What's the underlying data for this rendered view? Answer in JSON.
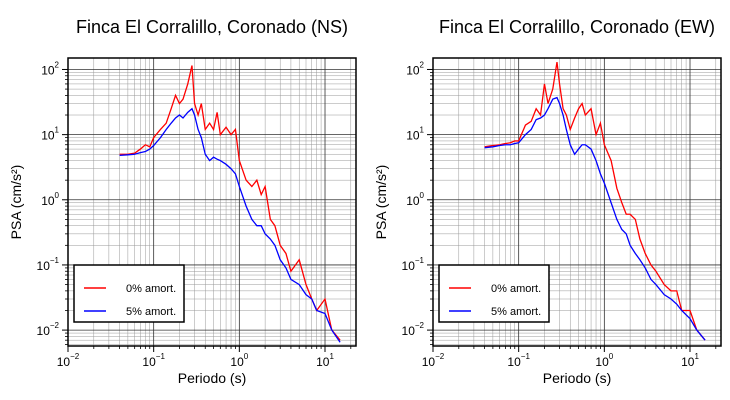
{
  "chart_data": [
    {
      "type": "line",
      "title": "Finca El Corralillo, Coronado (NS)",
      "x_label": "Periodo (s)",
      "y_label": "PSA (cm/s²)",
      "log_x": true,
      "log_y": true,
      "grid": true,
      "minor_grid": true,
      "legend": "lower left",
      "x": [
        0.04,
        0.05,
        0.06,
        0.07,
        0.08,
        0.09,
        0.1,
        0.12,
        0.14,
        0.16,
        0.18,
        0.2,
        0.22,
        0.25,
        0.28,
        0.3,
        0.33,
        0.36,
        0.4,
        0.45,
        0.5,
        0.55,
        0.6,
        0.7,
        0.8,
        0.9,
        1.0,
        1.2,
        1.4,
        1.6,
        1.8,
        2,
        2.3,
        2.6,
        3,
        3.5,
        4,
        5,
        6,
        7,
        8,
        10,
        12,
        15
      ],
      "series": [
        {
          "name": "0% amort.",
          "color": "#ff0000",
          "values": [
            5,
            5,
            5.2,
            6,
            7,
            6.5,
            9,
            12,
            15,
            25,
            40,
            30,
            35,
            60,
            115,
            30,
            20,
            30,
            12,
            15,
            12,
            22,
            10,
            13,
            10,
            12,
            4,
            2,
            1.6,
            2,
            1.2,
            1.6,
            0.5,
            0.4,
            0.2,
            0.15,
            0.08,
            0.12,
            0.05,
            0.03,
            0.02,
            0.03,
            0.01,
            0.007
          ]
        },
        {
          "name": "5% amort.",
          "color": "#0000ff",
          "values": [
            4.8,
            4.9,
            5,
            5.3,
            5.5,
            6,
            6.8,
            9,
            12,
            15,
            18,
            20,
            18,
            22,
            25,
            20,
            12,
            9,
            5,
            4,
            4.5,
            4.2,
            4,
            3.5,
            3,
            2.5,
            1.6,
            0.8,
            0.5,
            0.4,
            0.4,
            0.3,
            0.25,
            0.2,
            0.12,
            0.09,
            0.06,
            0.05,
            0.035,
            0.03,
            0.02,
            0.018,
            0.01,
            0.0065
          ]
        }
      ],
      "xlim": [
        0.01,
        23
      ],
      "ylim": [
        0.0057,
        150
      ],
      "xticks": [
        {
          "value": 0.01,
          "label": "10",
          "exponent": "−2"
        },
        {
          "value": 0.1,
          "label": "10",
          "exponent": "−1"
        },
        {
          "value": 1,
          "label": "10",
          "exponent": "0"
        },
        {
          "value": 10,
          "label": "10",
          "exponent": "1"
        }
      ],
      "yticks": [
        {
          "value": 0.01,
          "label": "10",
          "exponent": "−2"
        },
        {
          "value": 0.1,
          "label": "10",
          "exponent": "−1"
        },
        {
          "value": 1,
          "label": "10",
          "exponent": "0"
        },
        {
          "value": 10,
          "label": "10",
          "exponent": "1"
        },
        {
          "value": 100,
          "label": "10",
          "exponent": "2"
        }
      ]
    },
    {
      "type": "line",
      "title": "Finca El Corralillo, Coronado (EW)",
      "x_label": "Periodo (s)",
      "y_label": "PSA (cm/s²)",
      "log_x": true,
      "log_y": true,
      "grid": true,
      "minor_grid": true,
      "legend": "lower left",
      "x": [
        0.04,
        0.05,
        0.06,
        0.07,
        0.08,
        0.09,
        0.1,
        0.12,
        0.14,
        0.16,
        0.18,
        0.2,
        0.22,
        0.25,
        0.28,
        0.3,
        0.33,
        0.36,
        0.4,
        0.45,
        0.5,
        0.55,
        0.6,
        0.7,
        0.8,
        0.9,
        1.0,
        1.2,
        1.4,
        1.6,
        1.8,
        2,
        2.3,
        2.6,
        3,
        3.5,
        4,
        5,
        6,
        7,
        8,
        10,
        12,
        15
      ],
      "series": [
        {
          "name": "0% amort.",
          "color": "#ff0000",
          "values": [
            6.5,
            6.8,
            7,
            7.3,
            7.5,
            8,
            8,
            14,
            16,
            25,
            20,
            60,
            30,
            50,
            130,
            60,
            25,
            20,
            12,
            18,
            25,
            30,
            20,
            25,
            10,
            15,
            7,
            4,
            1.5,
            0.9,
            0.6,
            0.6,
            0.5,
            0.25,
            0.15,
            0.1,
            0.08,
            0.05,
            0.04,
            0.04,
            0.02,
            0.02,
            0.01,
            0.007
          ]
        },
        {
          "name": "5% amort.",
          "color": "#0000ff",
          "values": [
            6.3,
            6.5,
            6.8,
            7,
            7,
            7.3,
            7.5,
            10,
            12,
            17,
            18,
            20,
            25,
            35,
            37,
            30,
            20,
            12,
            7,
            5,
            6,
            7,
            7,
            6,
            4,
            2.5,
            1.8,
            0.9,
            0.5,
            0.35,
            0.3,
            0.2,
            0.15,
            0.12,
            0.09,
            0.06,
            0.05,
            0.035,
            0.03,
            0.025,
            0.02,
            0.015,
            0.01,
            0.007
          ]
        }
      ],
      "xlim": [
        0.01,
        23
      ],
      "ylim": [
        0.0057,
        150
      ],
      "xticks": [
        {
          "value": 0.01,
          "label": "10",
          "exponent": "−2"
        },
        {
          "value": 0.1,
          "label": "10",
          "exponent": "−1"
        },
        {
          "value": 1,
          "label": "10",
          "exponent": "0"
        },
        {
          "value": 10,
          "label": "10",
          "exponent": "1"
        }
      ],
      "yticks": [
        {
          "value": 0.01,
          "label": "10",
          "exponent": "−2"
        },
        {
          "value": 0.1,
          "label": "10",
          "exponent": "−1"
        },
        {
          "value": 1,
          "label": "10",
          "exponent": "0"
        },
        {
          "value": 10,
          "label": "10",
          "exponent": "1"
        },
        {
          "value": 100,
          "label": "10",
          "exponent": "2"
        }
      ]
    }
  ]
}
